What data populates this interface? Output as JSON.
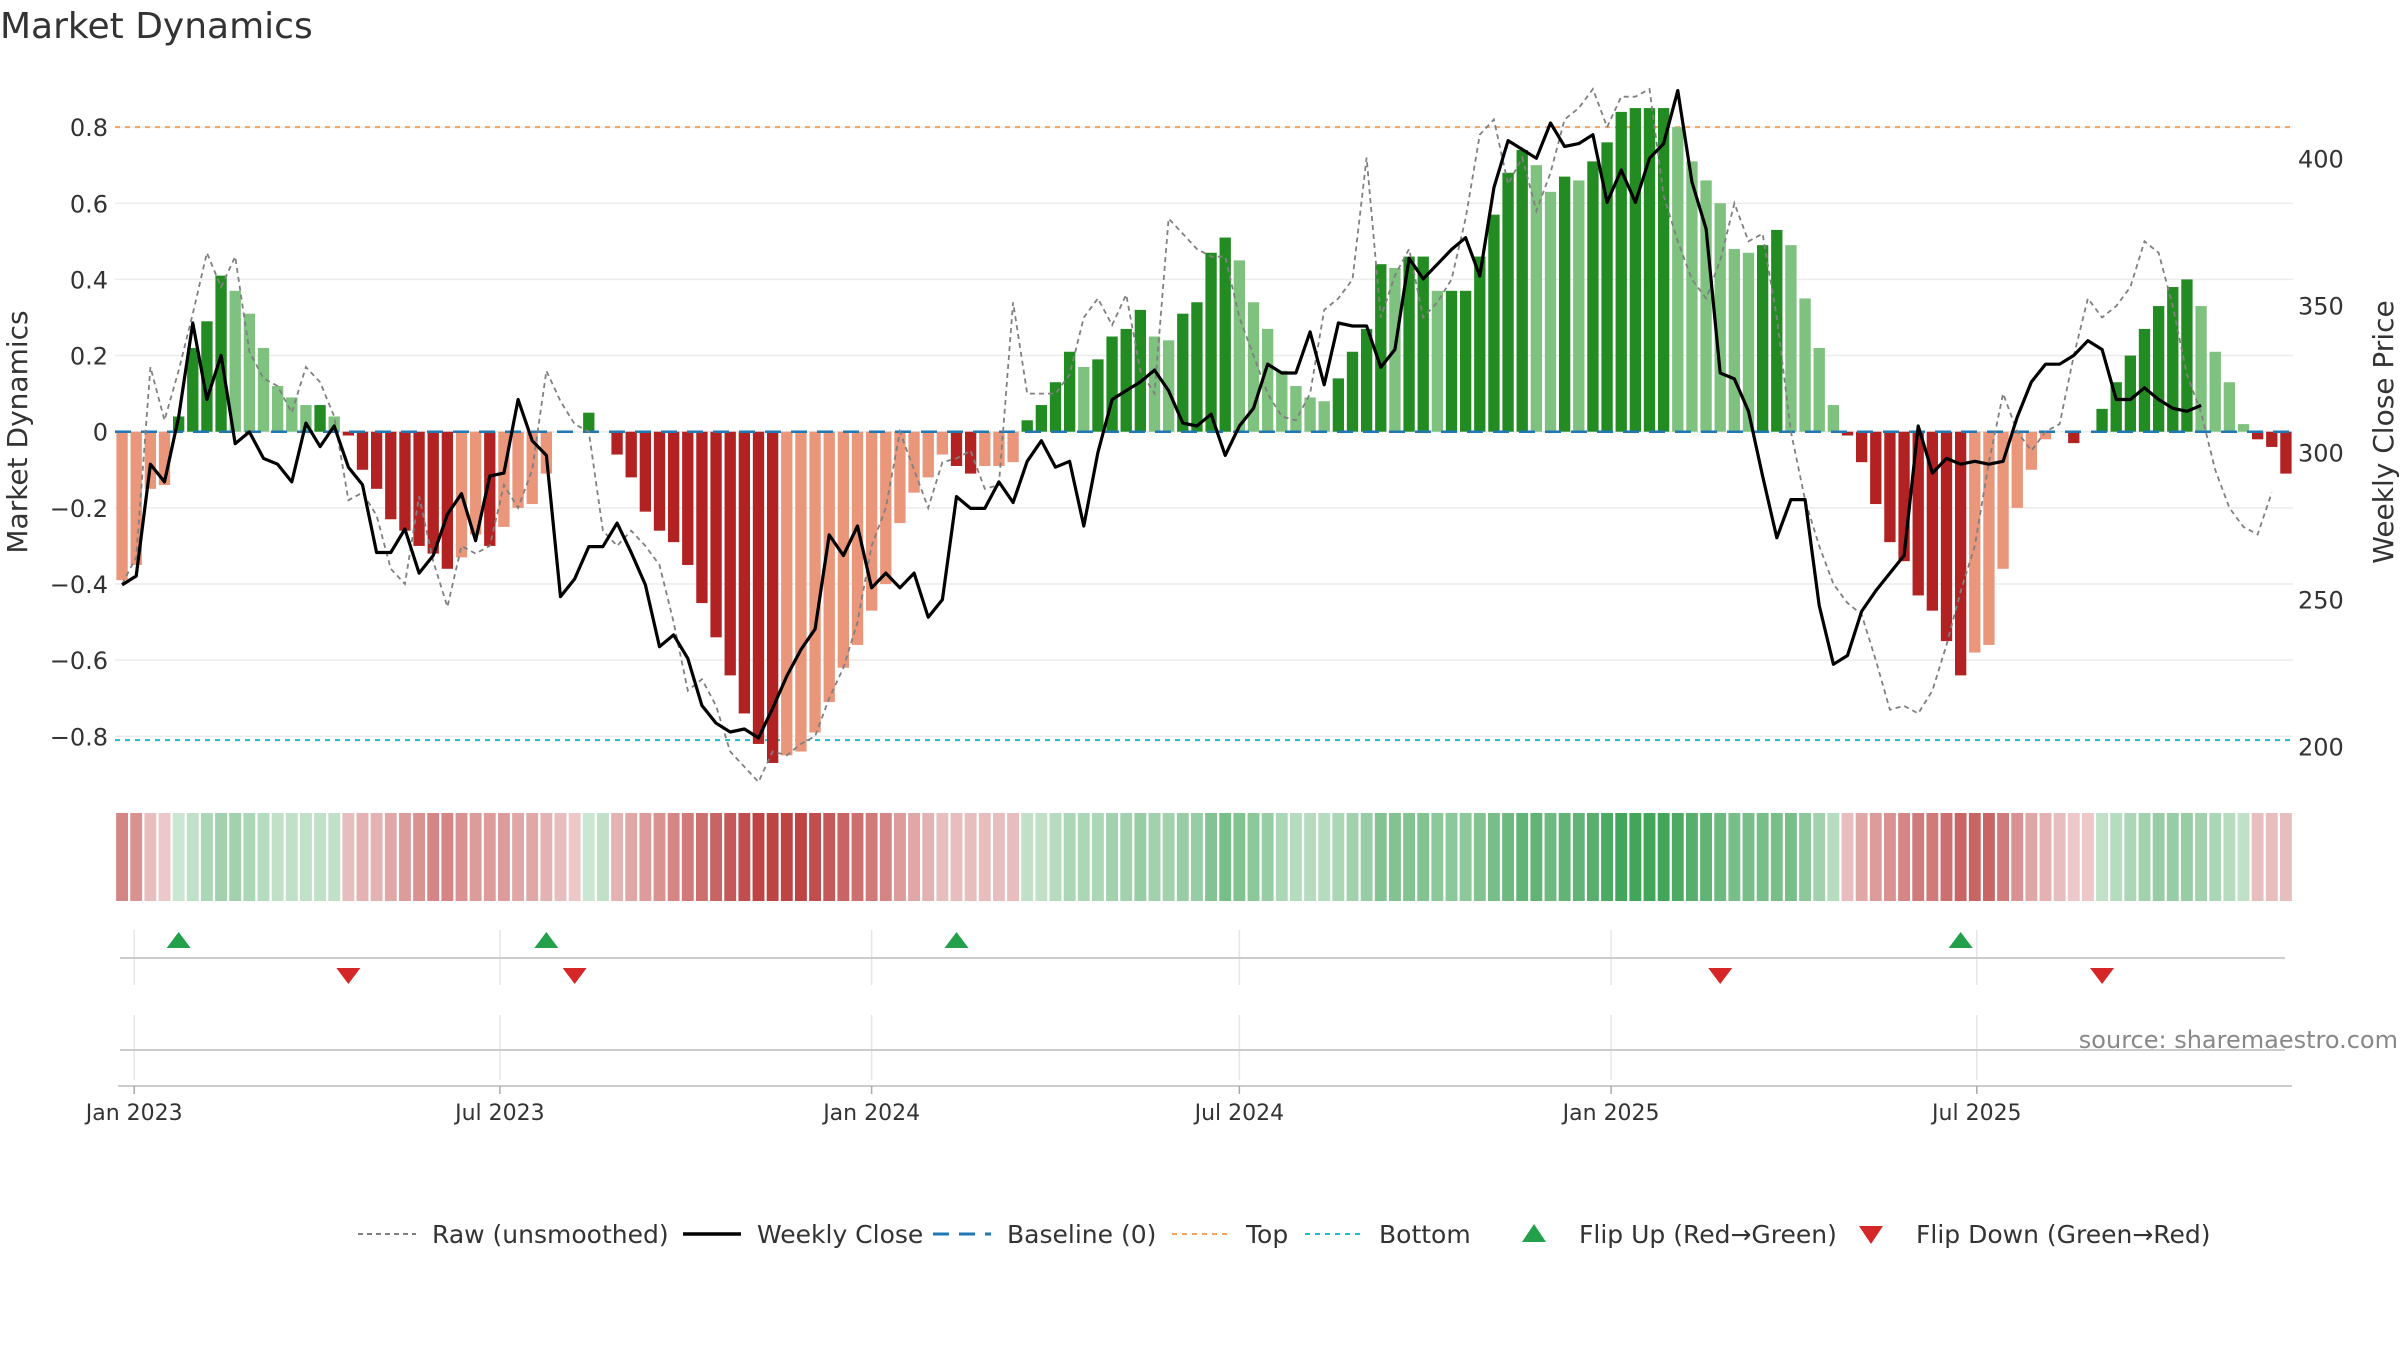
{
  "title": "Market Dynamics",
  "source": "source: sharemaestro.com",
  "colors": {
    "strong_green": "#228B22",
    "light_green": "#7FC17F",
    "strong_red": "#B22222",
    "light_red": "#E9967A",
    "close_line": "#000000",
    "raw_line": "#808080",
    "baseline": "#1F77B4",
    "top": "#F4A460",
    "bottom": "#17BECF",
    "flip_up": "#22A04A",
    "flip_down": "#D62728"
  },
  "chart_data": {
    "type": "bar",
    "title": "Market Dynamics",
    "ylabel": "Market Dynamics",
    "y2label": "Weekly Close Price",
    "ylim": [
      -0.92,
      0.95
    ],
    "y2lim": [
      188,
      430
    ],
    "yticks": [
      -0.8,
      -0.6,
      -0.4,
      -0.2,
      0,
      0.2,
      0.4,
      0.6,
      0.8
    ],
    "yticklabels": [
      "−0.8",
      "−0.6",
      "−0.4",
      "−0.2",
      "0",
      "0.2",
      "0.4",
      "0.6",
      "0.8"
    ],
    "y2ticks": [
      200,
      250,
      300,
      350,
      400
    ],
    "x_start": "2022-12-26",
    "xticks": [
      "2023-01-01",
      "2023-07-01",
      "2024-01-01",
      "2024-07-01",
      "2025-01-01",
      "2025-07-01"
    ],
    "xticklabels": [
      "Jan 2023",
      "Jul 2023",
      "Jan 2024",
      "Jul 2024",
      "Jan 2025",
      "Jul 2025"
    ],
    "top_line": 0.8,
    "bottom_line": -0.81,
    "baseline": 0,
    "dynamics": [
      -0.39,
      -0.35,
      -0.15,
      -0.14,
      0.04,
      0.22,
      0.29,
      0.41,
      0.37,
      0.31,
      0.22,
      0.12,
      0.09,
      0.07,
      0.07,
      0.04,
      -0.01,
      -0.1,
      -0.15,
      -0.23,
      -0.26,
      -0.3,
      -0.32,
      -0.36,
      -0.33,
      -0.27,
      -0.3,
      -0.25,
      -0.2,
      -0.19,
      -0.11,
      0.0,
      0.0,
      0.05,
      0.0,
      -0.06,
      -0.12,
      -0.21,
      -0.26,
      -0.29,
      -0.35,
      -0.45,
      -0.54,
      -0.64,
      -0.74,
      -0.82,
      -0.87,
      -0.85,
      -0.84,
      -0.79,
      -0.71,
      -0.62,
      -0.56,
      -0.47,
      -0.4,
      -0.24,
      -0.16,
      -0.12,
      -0.06,
      -0.09,
      -0.11,
      -0.09,
      -0.09,
      -0.08,
      0.03,
      0.07,
      0.13,
      0.21,
      0.17,
      0.19,
      0.25,
      0.27,
      0.32,
      0.25,
      0.24,
      0.31,
      0.34,
      0.47,
      0.51,
      0.45,
      0.34,
      0.27,
      0.16,
      0.12,
      0.09,
      0.08,
      0.14,
      0.21,
      0.27,
      0.44,
      0.43,
      0.46,
      0.46,
      0.37,
      0.37,
      0.37,
      0.46,
      0.57,
      0.68,
      0.74,
      0.7,
      0.63,
      0.67,
      0.66,
      0.71,
      0.76,
      0.84,
      0.85,
      0.85,
      0.85,
      0.8,
      0.71,
      0.66,
      0.6,
      0.48,
      0.47,
      0.49,
      0.53,
      0.49,
      0.35,
      0.22,
      0.07,
      -0.01,
      -0.08,
      -0.19,
      -0.29,
      -0.34,
      -0.43,
      -0.47,
      -0.55,
      -0.64,
      -0.58,
      -0.56,
      -0.36,
      -0.2,
      -0.1,
      -0.02,
      0.0,
      -0.03,
      0.0,
      0.06,
      0.13,
      0.2,
      0.27,
      0.33,
      0.38,
      0.4,
      0.33,
      0.21,
      0.13,
      0.02,
      -0.02,
      -0.04,
      -0.11
    ],
    "raw": [
      -0.4,
      -0.33,
      0.17,
      0.03,
      0.16,
      0.31,
      0.47,
      0.38,
      0.46,
      0.21,
      0.14,
      0.12,
      0.05,
      0.17,
      0.13,
      0.04,
      -0.18,
      -0.16,
      -0.22,
      -0.36,
      -0.4,
      -0.17,
      -0.34,
      -0.46,
      -0.3,
      -0.32,
      -0.3,
      -0.14,
      -0.2,
      -0.1,
      0.16,
      0.08,
      0.02,
      0.0,
      -0.26,
      -0.3,
      -0.26,
      -0.3,
      -0.35,
      -0.5,
      -0.68,
      -0.65,
      -0.72,
      -0.84,
      -0.88,
      -0.92,
      -0.84,
      -0.85,
      -0.82,
      -0.8,
      -0.7,
      -0.62,
      -0.5,
      -0.3,
      -0.2,
      0.0,
      -0.1,
      -0.2,
      -0.08,
      -0.07,
      -0.05,
      -0.15,
      -0.14,
      0.34,
      0.1,
      0.1,
      0.1,
      0.15,
      0.3,
      0.35,
      0.28,
      0.36,
      0.16,
      0.1,
      0.56,
      0.52,
      0.48,
      0.46,
      0.46,
      0.3,
      0.2,
      0.1,
      0.04,
      0.03,
      0.1,
      0.32,
      0.35,
      0.4,
      0.72,
      0.3,
      0.41,
      0.48,
      0.3,
      0.34,
      0.4,
      0.56,
      0.78,
      0.82,
      0.65,
      0.72,
      0.58,
      0.68,
      0.82,
      0.85,
      0.9,
      0.8,
      0.88,
      0.88,
      0.9,
      0.62,
      0.5,
      0.4,
      0.35,
      0.45,
      0.6,
      0.5,
      0.52,
      0.3,
      0.0,
      -0.18,
      -0.3,
      -0.4,
      -0.45,
      -0.48,
      -0.6,
      -0.73,
      -0.72,
      -0.74,
      -0.68,
      -0.56,
      -0.42,
      -0.3,
      -0.08,
      0.1,
      0.0,
      -0.05,
      0.0,
      0.02,
      0.2,
      0.35,
      0.3,
      0.33,
      0.38,
      0.5,
      0.47,
      0.33,
      0.15,
      0.05,
      -0.1,
      -0.2,
      -0.25,
      -0.27,
      -0.16
    ],
    "close": [
      255,
      258,
      296,
      290,
      312,
      344,
      318,
      333,
      303,
      307,
      298,
      296,
      290,
      310,
      302,
      309,
      295,
      289,
      266,
      266,
      274,
      259,
      265,
      279,
      286,
      270,
      292,
      293,
      318,
      304,
      299,
      251,
      257,
      268,
      268,
      276,
      266,
      255,
      234,
      238,
      230,
      214,
      208,
      205,
      206,
      203,
      213,
      224,
      233,
      240,
      272,
      265,
      275,
      254,
      259,
      254,
      259,
      244,
      250,
      285,
      281,
      281,
      290,
      283,
      297,
      304,
      295,
      297,
      275,
      300,
      318,
      321,
      324,
      328,
      321,
      310,
      309,
      313,
      299,
      309,
      315,
      330,
      327,
      327,
      341,
      323,
      344,
      343,
      343,
      329,
      335,
      366,
      359,
      364,
      369,
      373,
      360,
      390,
      406,
      403,
      400,
      412,
      404,
      405,
      408,
      385,
      396,
      385,
      400,
      405,
      423,
      392,
      376,
      327,
      325,
      314,
      292,
      271,
      284,
      284,
      248,
      228,
      231,
      246,
      253,
      259,
      265,
      309,
      293,
      298,
      296,
      297,
      296,
      297,
      312,
      324,
      330,
      330,
      333,
      338,
      335,
      318,
      318,
      322,
      318,
      315,
      314,
      316
    ]
  },
  "strip": {
    "intensity": [
      0.55,
      0.5,
      0.3,
      0.25,
      0.25,
      0.3,
      0.4,
      0.45,
      0.45,
      0.4,
      0.35,
      0.3,
      0.3,
      0.3,
      0.3,
      0.3,
      0.3,
      0.35,
      0.35,
      0.4,
      0.45,
      0.5,
      0.55,
      0.55,
      0.5,
      0.45,
      0.45,
      0.45,
      0.4,
      0.4,
      0.35,
      0.3,
      0.25,
      0.25,
      0.3,
      0.35,
      0.4,
      0.45,
      0.5,
      0.55,
      0.6,
      0.65,
      0.7,
      0.75,
      0.8,
      0.85,
      0.85,
      0.85,
      0.85,
      0.8,
      0.75,
      0.7,
      0.65,
      0.6,
      0.55,
      0.45,
      0.4,
      0.35,
      0.3,
      0.3,
      0.3,
      0.3,
      0.3,
      0.3,
      0.3,
      0.3,
      0.35,
      0.4,
      0.4,
      0.4,
      0.45,
      0.45,
      0.5,
      0.45,
      0.45,
      0.5,
      0.5,
      0.6,
      0.65,
      0.6,
      0.55,
      0.5,
      0.4,
      0.35,
      0.35,
      0.35,
      0.4,
      0.45,
      0.5,
      0.6,
      0.6,
      0.6,
      0.6,
      0.55,
      0.55,
      0.55,
      0.6,
      0.65,
      0.7,
      0.75,
      0.75,
      0.7,
      0.75,
      0.75,
      0.8,
      0.85,
      0.9,
      0.9,
      0.9,
      0.9,
      0.85,
      0.8,
      0.75,
      0.7,
      0.65,
      0.65,
      0.65,
      0.65,
      0.65,
      0.55,
      0.45,
      0.35,
      0.3,
      0.4,
      0.45,
      0.5,
      0.55,
      0.6,
      0.6,
      0.65,
      0.7,
      0.7,
      0.7,
      0.6,
      0.5,
      0.4,
      0.35,
      0.3,
      0.25,
      0.25,
      0.3,
      0.35,
      0.4,
      0.45,
      0.5,
      0.5,
      0.5,
      0.45,
      0.4,
      0.35,
      0.3,
      0.3,
      0.3,
      0.3
    ]
  },
  "flips": {
    "up_weeks": [
      4,
      30,
      59,
      130
    ],
    "down_weeks": [
      16,
      32,
      113,
      140
    ]
  },
  "legend": [
    {
      "label": "Raw (unsmoothed)",
      "kind": "raw"
    },
    {
      "label": "Weekly Close",
      "kind": "close"
    },
    {
      "label": "Baseline (0)",
      "kind": "baseline"
    },
    {
      "label": "Top",
      "kind": "top"
    },
    {
      "label": "Bottom",
      "kind": "bottom"
    },
    {
      "label": "Flip Up (Red→Green)",
      "kind": "flip_up"
    },
    {
      "label": "Flip Down (Green→Red)",
      "kind": "flip_down"
    }
  ]
}
